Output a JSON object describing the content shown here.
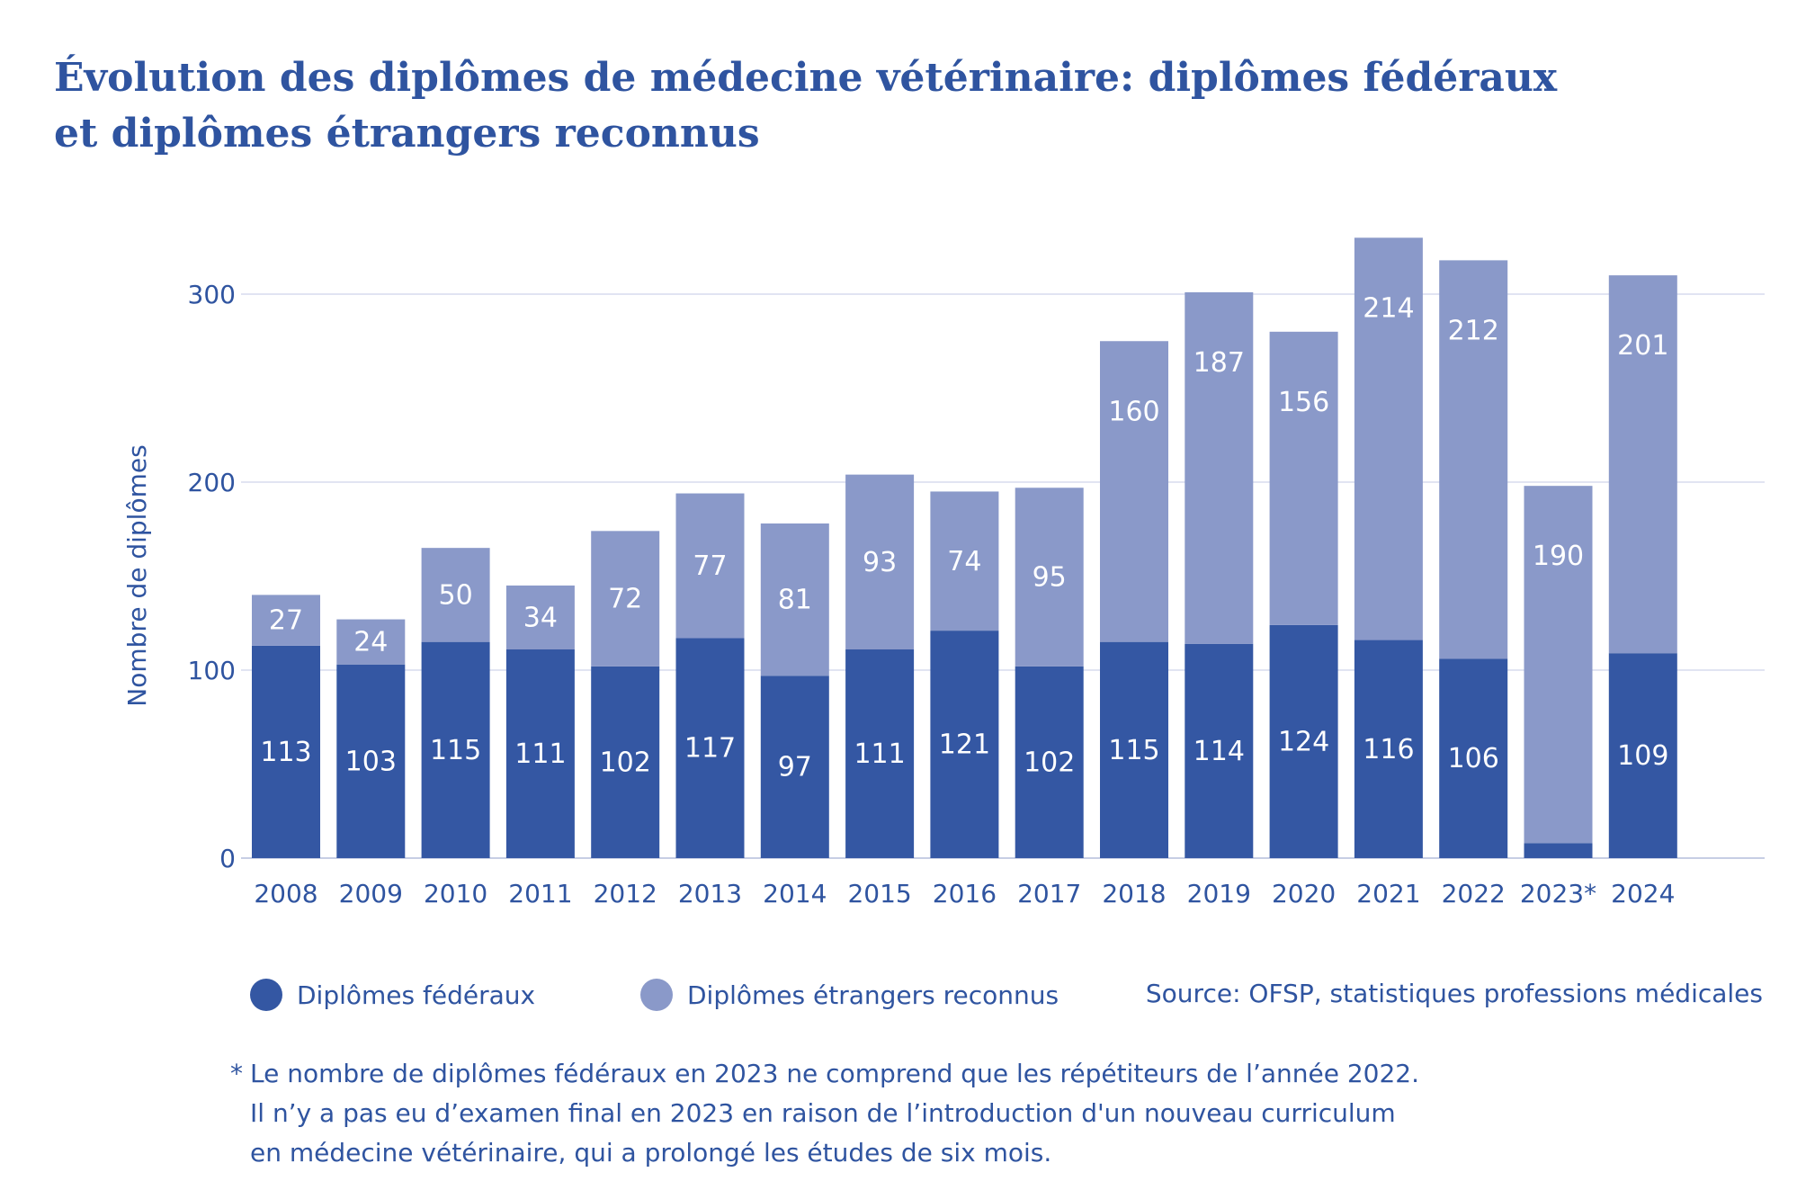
{
  "title_lines": [
    "Évolution des diplômes de médecine vétérinaire: diplômes fédéraux",
    "et diplômes étrangers reconnus"
  ],
  "chart_data": {
    "type": "bar",
    "stacked": true,
    "categories": [
      "2008",
      "2009",
      "2010",
      "2011",
      "2012",
      "2013",
      "2014",
      "2015",
      "2016",
      "2017",
      "2018",
      "2019",
      "2020",
      "2021",
      "2022",
      "2023*",
      "2024"
    ],
    "series": [
      {
        "name": "Diplômes fédéraux",
        "color": "#3457a3",
        "values": [
          113,
          103,
          115,
          111,
          102,
          117,
          97,
          111,
          121,
          102,
          115,
          114,
          124,
          116,
          106,
          8,
          109
        ]
      },
      {
        "name": "Diplômes étrangers reconnus",
        "color": "#8a99c9",
        "values": [
          27,
          24,
          50,
          34,
          72,
          77,
          81,
          93,
          74,
          95,
          160,
          187,
          156,
          214,
          212,
          190,
          201
        ]
      }
    ],
    "ylabel": "Nombre de diplômes",
    "ylim": [
      0,
      340
    ],
    "yticks": [
      0,
      100,
      200,
      300
    ],
    "grid": true,
    "legend_position": "bottom-left"
  },
  "source": "Source: OFSP, statistiques professions médicales",
  "footnote": {
    "marker": "*",
    "lines": [
      "Le nombre de diplômes fédéraux en 2023 ne comprend que les répétiteurs de l’année 2022.",
      "Il n’y a pas eu d’examen final en 2023 en raison de l’introduction d'un nouveau curriculum",
      "en médecine vétérinaire, qui a prolongé les études de six mois."
    ]
  },
  "colors": {
    "text": "#2f54a0",
    "grid": "#d7dced",
    "axis": "#c7cee4"
  }
}
